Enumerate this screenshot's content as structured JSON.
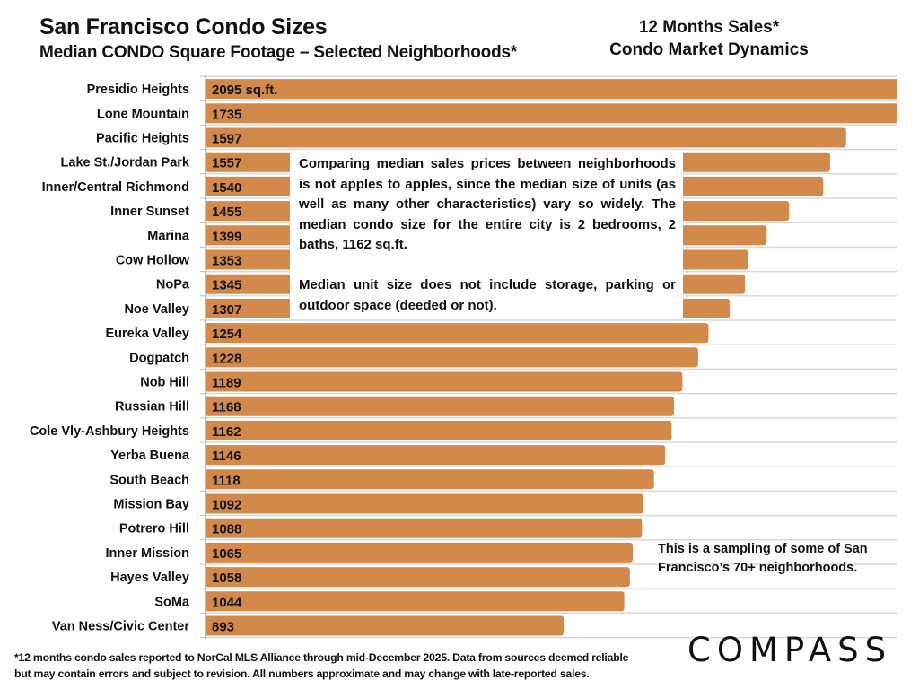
{
  "header": {
    "title": "San Francisco Condo Sizes",
    "subtitle": "Median CONDO Square Footage – Selected Neighborhoods*",
    "right_title_line1": "12 Months Sales*",
    "right_title_line2": "Condo Market Dynamics"
  },
  "chart_data": {
    "type": "bar",
    "orientation": "horizontal",
    "title": "Median CONDO Square Footage – Selected Neighborhoods*",
    "xlabel": "",
    "ylabel": "",
    "unit_suffix_first": "sq.ft.",
    "xlim": [
      0,
      1725
    ],
    "grid": true,
    "bar_color": "#D2894A",
    "categories": [
      "Presidio Heights",
      "Lone Mountain",
      "Pacific Heights",
      "Lake St./Jordan Park",
      "Inner/Central Richmond",
      "Inner Sunset",
      "Marina",
      "Cow Hollow",
      "NoPa",
      "Noe Valley",
      "Eureka Valley",
      "Dogpatch",
      "Nob Hill",
      "Russian Hill",
      "Cole Vly-Ashbury Heights",
      "Yerba Buena",
      "South Beach",
      "Mission Bay",
      "Potrero Hill",
      "Inner Mission",
      "Hayes Valley",
      "SoMa",
      "Van Ness/Civic Center"
    ],
    "values": [
      2095,
      1735,
      1597,
      1557,
      1540,
      1455,
      1399,
      1353,
      1345,
      1307,
      1254,
      1228,
      1189,
      1168,
      1162,
      1146,
      1118,
      1092,
      1088,
      1065,
      1058,
      1044,
      893
    ]
  },
  "notes": {
    "comparison_paragraph": "Comparing median sales prices between neighborhoods is not apples to apples, since the median size of units (as well as many other characteristics) vary so widely. The median condo size for the entire city is 2 bedrooms, 2 baths, 1162 sq.ft.",
    "storage_paragraph": "Median unit size does not include storage, parking or outdoor space (deeded or not).",
    "sampling_note": "This is a sampling of some of San Francisco’s 70+ neighborhoods."
  },
  "footnote": {
    "line1": "*12 months condo sales reported to NorCal MLS Alliance through mid-December 2025. Data from sources deemed reliable",
    "line2": "but may contain errors and subject to revision. All numbers approximate and may change with late-reported sales."
  },
  "brand": {
    "logo_text": "COMPASS"
  }
}
